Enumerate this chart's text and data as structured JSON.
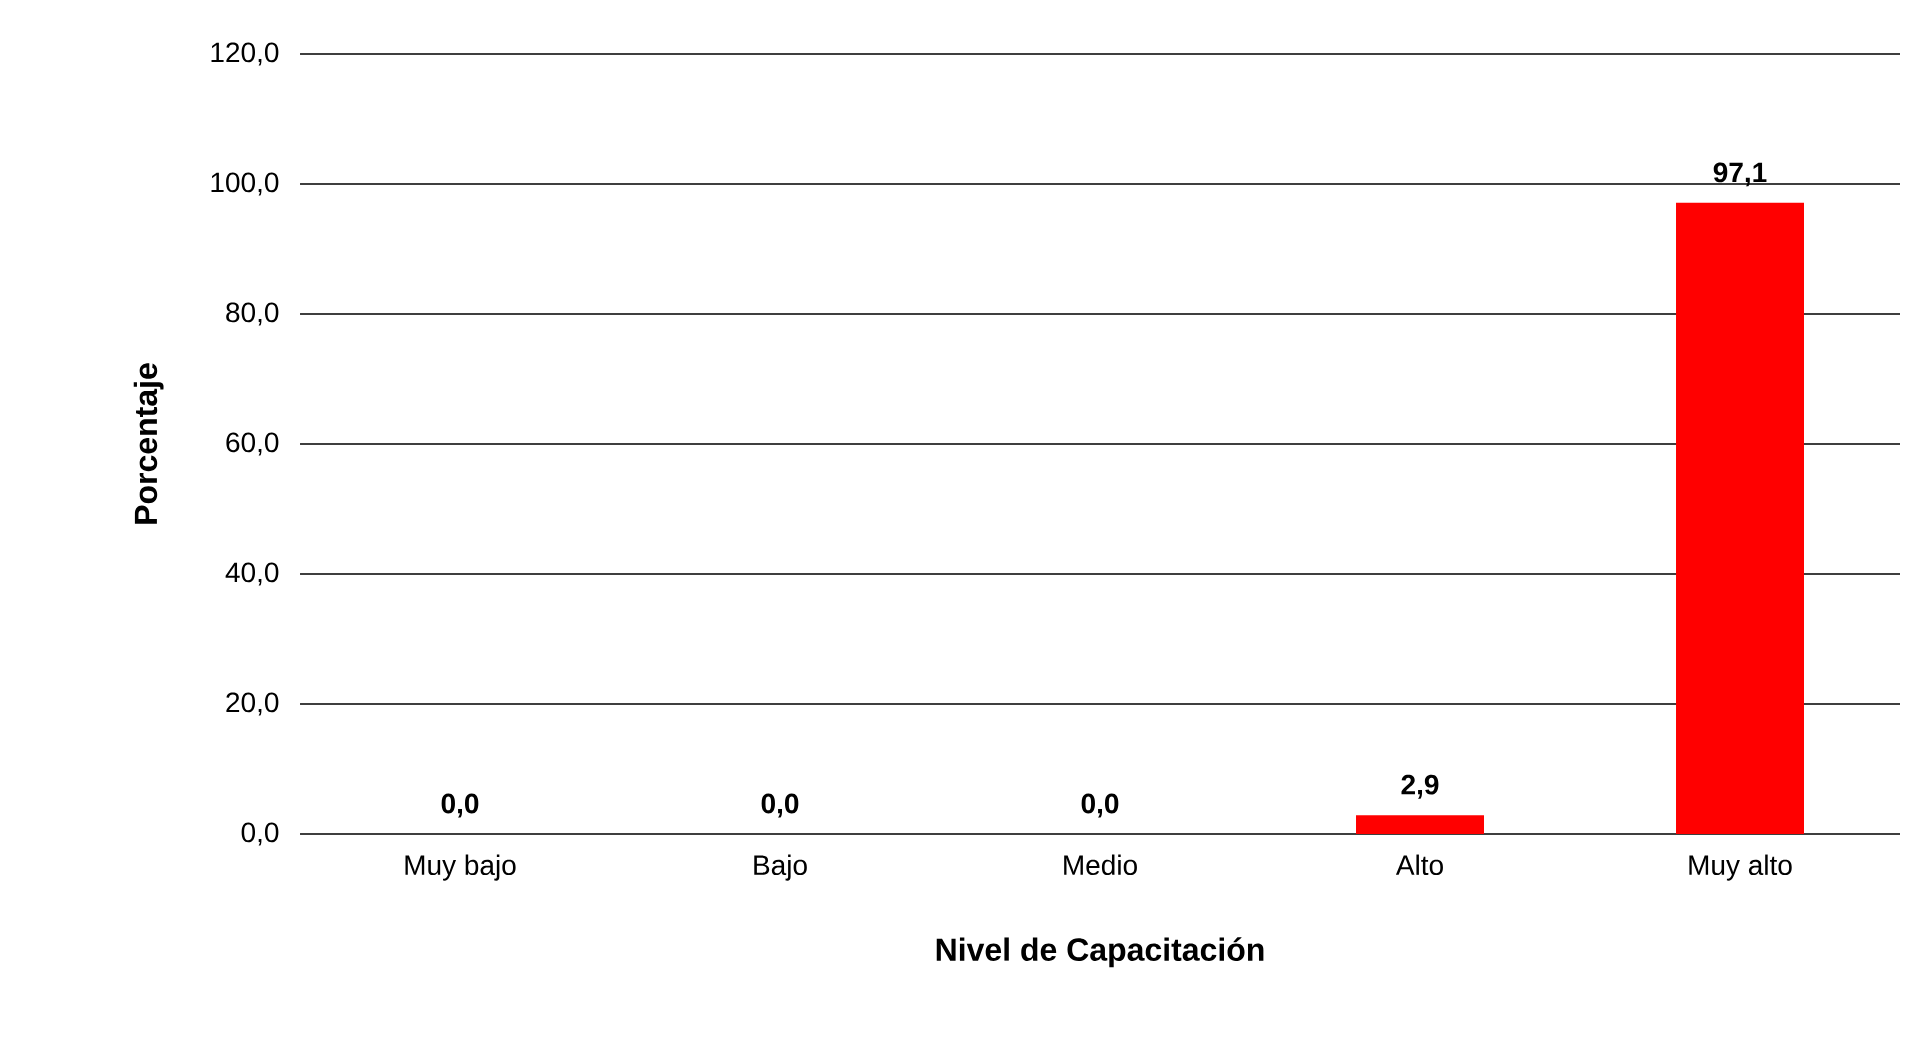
{
  "chart_data": {
    "type": "bar",
    "xlabel": "Nivel de Capacitación",
    "ylabel": "Porcentaje",
    "categories": [
      "Muy bajo",
      "Bajo",
      "Medio",
      "Alto",
      "Muy alto"
    ],
    "values": [
      0,
      0,
      0,
      2.9,
      97.1
    ],
    "value_labels": [
      "0,0",
      "0,0",
      "0,0",
      "2,9",
      "97,1"
    ],
    "color": "#ff0000",
    "ylim": [
      0,
      120
    ],
    "yticks": [
      {
        "value": 0,
        "label": "0,0"
      },
      {
        "value": 20,
        "label": "20,0"
      },
      {
        "value": 40,
        "label": "40,0"
      },
      {
        "value": 60,
        "label": "60,0"
      },
      {
        "value": 80,
        "label": "80,0"
      },
      {
        "value": 100,
        "label": "100,0"
      },
      {
        "value": 120,
        "label": "120,0"
      }
    ],
    "grid": "y"
  }
}
